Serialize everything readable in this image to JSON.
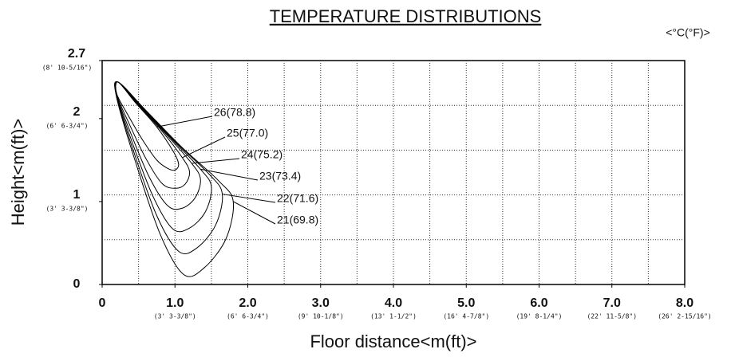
{
  "chart_data": {
    "type": "contour",
    "title": "TEMPERATURE DISTRIBUTIONS",
    "unit": "<°C(°F)>",
    "xlabel": "Floor distance<m(ft)>",
    "ylabel": "Height<m(ft)>",
    "xlim": [
      0,
      8
    ],
    "ylim": [
      0,
      2.7
    ],
    "xticks": [
      0,
      {
        "value": 1,
        "label": "1.0",
        "sublabel": "(3' 3-3/8\")"
      },
      {
        "value": 2,
        "label": "2.0",
        "sublabel": "(6' 6-3/4\")"
      },
      {
        "value": 3,
        "label": "3.0",
        "sublabel": "(9' 10-1/8\")"
      },
      {
        "value": 4,
        "label": "4.0",
        "sublabel": "(13' 1-1/2\")"
      },
      {
        "value": 5,
        "label": "5.0",
        "sublabel": "(16' 4-7/8\")"
      },
      {
        "value": 6,
        "label": "6.0",
        "sublabel": "(19' 8-1/4\")"
      },
      {
        "value": 7,
        "label": "7.0",
        "sublabel": "(22' 11-5/8\")"
      },
      {
        "value": 8,
        "label": "8.0",
        "sublabel": "(26' 2-15/16\")"
      }
    ],
    "yticks": [
      0,
      {
        "value": 1,
        "label": "1",
        "sublabel": "(3' 3-3/8\")"
      },
      {
        "value": 2,
        "label": "2",
        "sublabel": "(6' 6-3/4\")"
      },
      {
        "value": 2.7,
        "label": "2.7",
        "sublabel": "(8' 10-5/16\")"
      }
    ],
    "xgrid": [
      0.5,
      1,
      1.5,
      2,
      2.5,
      3,
      3.5,
      4,
      4.5,
      5,
      5.5,
      6,
      6.5,
      7,
      7.5
    ],
    "ygrid": [
      0.54,
      1.08,
      1.62,
      2.16
    ],
    "grid": true,
    "color": "#000000",
    "series": [
      {
        "name": "26(78.8)",
        "x": [
          0.22,
          0.45,
          0.75,
          0.98,
          1.05,
          1.0,
          0.9,
          0.75,
          0.55,
          0.35,
          0.2
        ],
        "y": [
          2.44,
          2.2,
          1.9,
          1.6,
          1.45,
          1.38,
          1.4,
          1.5,
          1.75,
          2.05,
          2.3
        ]
      },
      {
        "name": "25(77.0)",
        "x": [
          0.22,
          0.48,
          0.82,
          1.1,
          1.2,
          1.14,
          1.0,
          0.82,
          0.6,
          0.37,
          0.2
        ],
        "y": [
          2.44,
          2.18,
          1.85,
          1.53,
          1.36,
          1.21,
          1.16,
          1.22,
          1.52,
          1.94,
          2.29
        ]
      },
      {
        "name": "24(75.2)",
        "x": [
          0.22,
          0.51,
          0.89,
          1.23,
          1.35,
          1.28,
          1.1,
          0.9,
          0.65,
          0.39,
          0.2
        ],
        "y": [
          2.44,
          2.16,
          1.8,
          1.46,
          1.27,
          1.05,
          0.92,
          0.95,
          1.29,
          1.83,
          2.28
        ]
      },
      {
        "name": "23(73.4)",
        "x": [
          0.22,
          0.54,
          0.96,
          1.35,
          1.5,
          1.42,
          1.2,
          0.97,
          0.7,
          0.41,
          0.2
        ],
        "y": [
          2.44,
          2.14,
          1.75,
          1.39,
          1.18,
          0.88,
          0.68,
          0.67,
          1.06,
          1.72,
          2.27
        ]
      },
      {
        "name": "22(71.6)",
        "x": [
          0.22,
          0.57,
          1.03,
          1.48,
          1.65,
          1.56,
          1.3,
          1.05,
          0.75,
          0.43,
          0.2
        ],
        "y": [
          2.44,
          2.12,
          1.7,
          1.32,
          1.09,
          0.72,
          0.44,
          0.4,
          0.83,
          1.61,
          2.26
        ]
      },
      {
        "name": "21(69.8)",
        "x": [
          0.22,
          0.6,
          1.1,
          1.6,
          1.8,
          1.7,
          1.4,
          1.12,
          0.8,
          0.45,
          0.2
        ],
        "y": [
          2.44,
          2.1,
          1.65,
          1.25,
          1.0,
          0.55,
          0.2,
          0.12,
          0.6,
          1.5,
          2.25
        ]
      }
    ]
  }
}
